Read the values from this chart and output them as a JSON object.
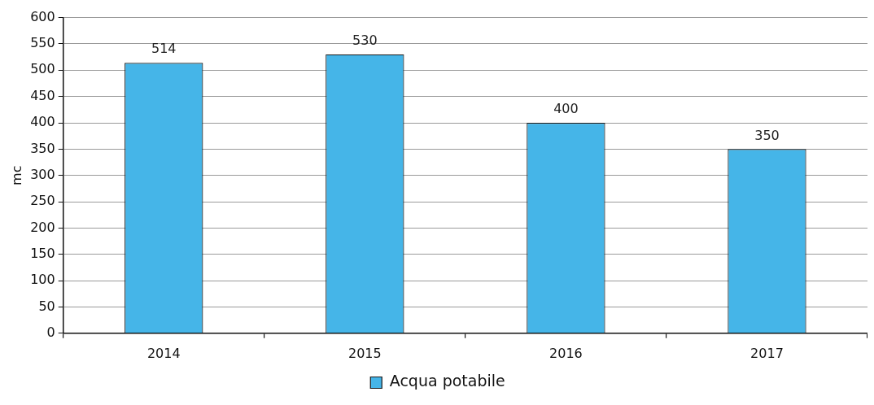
{
  "chart_data": {
    "type": "bar",
    "ylabel": "mc",
    "categories": [
      "2014",
      "2015",
      "2016",
      "2017"
    ],
    "series": [
      {
        "name": "Acqua potabile",
        "color": "#45b5e8",
        "values": [
          514,
          530,
          400,
          350
        ]
      }
    ],
    "ylim": [
      0,
      600
    ],
    "yticks": [
      0,
      50,
      100,
      150,
      200,
      250,
      300,
      350,
      400,
      450,
      500,
      550,
      600
    ],
    "grid": "y",
    "legend": "bottom",
    "data_labels": true
  }
}
